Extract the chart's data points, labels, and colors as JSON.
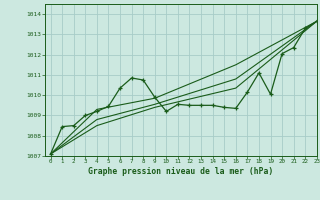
{
  "title": "Graphe pression niveau de la mer (hPa)",
  "bg_color": "#cce8e0",
  "line_color": "#1a5c1a",
  "grid_color": "#a8ccc8",
  "xlim": [
    -0.5,
    23
  ],
  "ylim": [
    1007,
    1014.5
  ],
  "xticks": [
    0,
    1,
    2,
    3,
    4,
    5,
    6,
    7,
    8,
    9,
    10,
    11,
    12,
    13,
    14,
    15,
    16,
    17,
    18,
    19,
    20,
    21,
    22,
    23
  ],
  "yticks": [
    1007,
    1008,
    1009,
    1010,
    1011,
    1012,
    1013,
    1014
  ],
  "main_series": {
    "x": [
      0,
      1,
      2,
      3,
      4,
      5,
      6,
      7,
      8,
      9,
      10,
      11,
      12,
      13,
      14,
      15,
      16,
      17,
      18,
      19,
      20,
      21,
      22,
      23
    ],
    "y": [
      1007.1,
      1008.45,
      1008.5,
      1009.0,
      1009.2,
      1009.45,
      1010.35,
      1010.85,
      1010.75,
      1009.9,
      1009.2,
      1009.55,
      1009.5,
      1009.5,
      1009.5,
      1009.4,
      1009.35,
      1010.15,
      1011.1,
      1010.05,
      1012.05,
      1012.35,
      1013.3,
      1013.65
    ]
  },
  "trend_lines": [
    {
      "x": [
        0,
        4,
        9,
        16,
        23
      ],
      "y": [
        1007.1,
        1009.3,
        1009.85,
        1011.5,
        1013.65
      ]
    },
    {
      "x": [
        0,
        4,
        9,
        16,
        23
      ],
      "y": [
        1007.1,
        1008.8,
        1009.55,
        1010.8,
        1013.65
      ]
    },
    {
      "x": [
        0,
        4,
        9,
        16,
        23
      ],
      "y": [
        1007.1,
        1008.5,
        1009.4,
        1010.35,
        1013.65
      ]
    }
  ]
}
